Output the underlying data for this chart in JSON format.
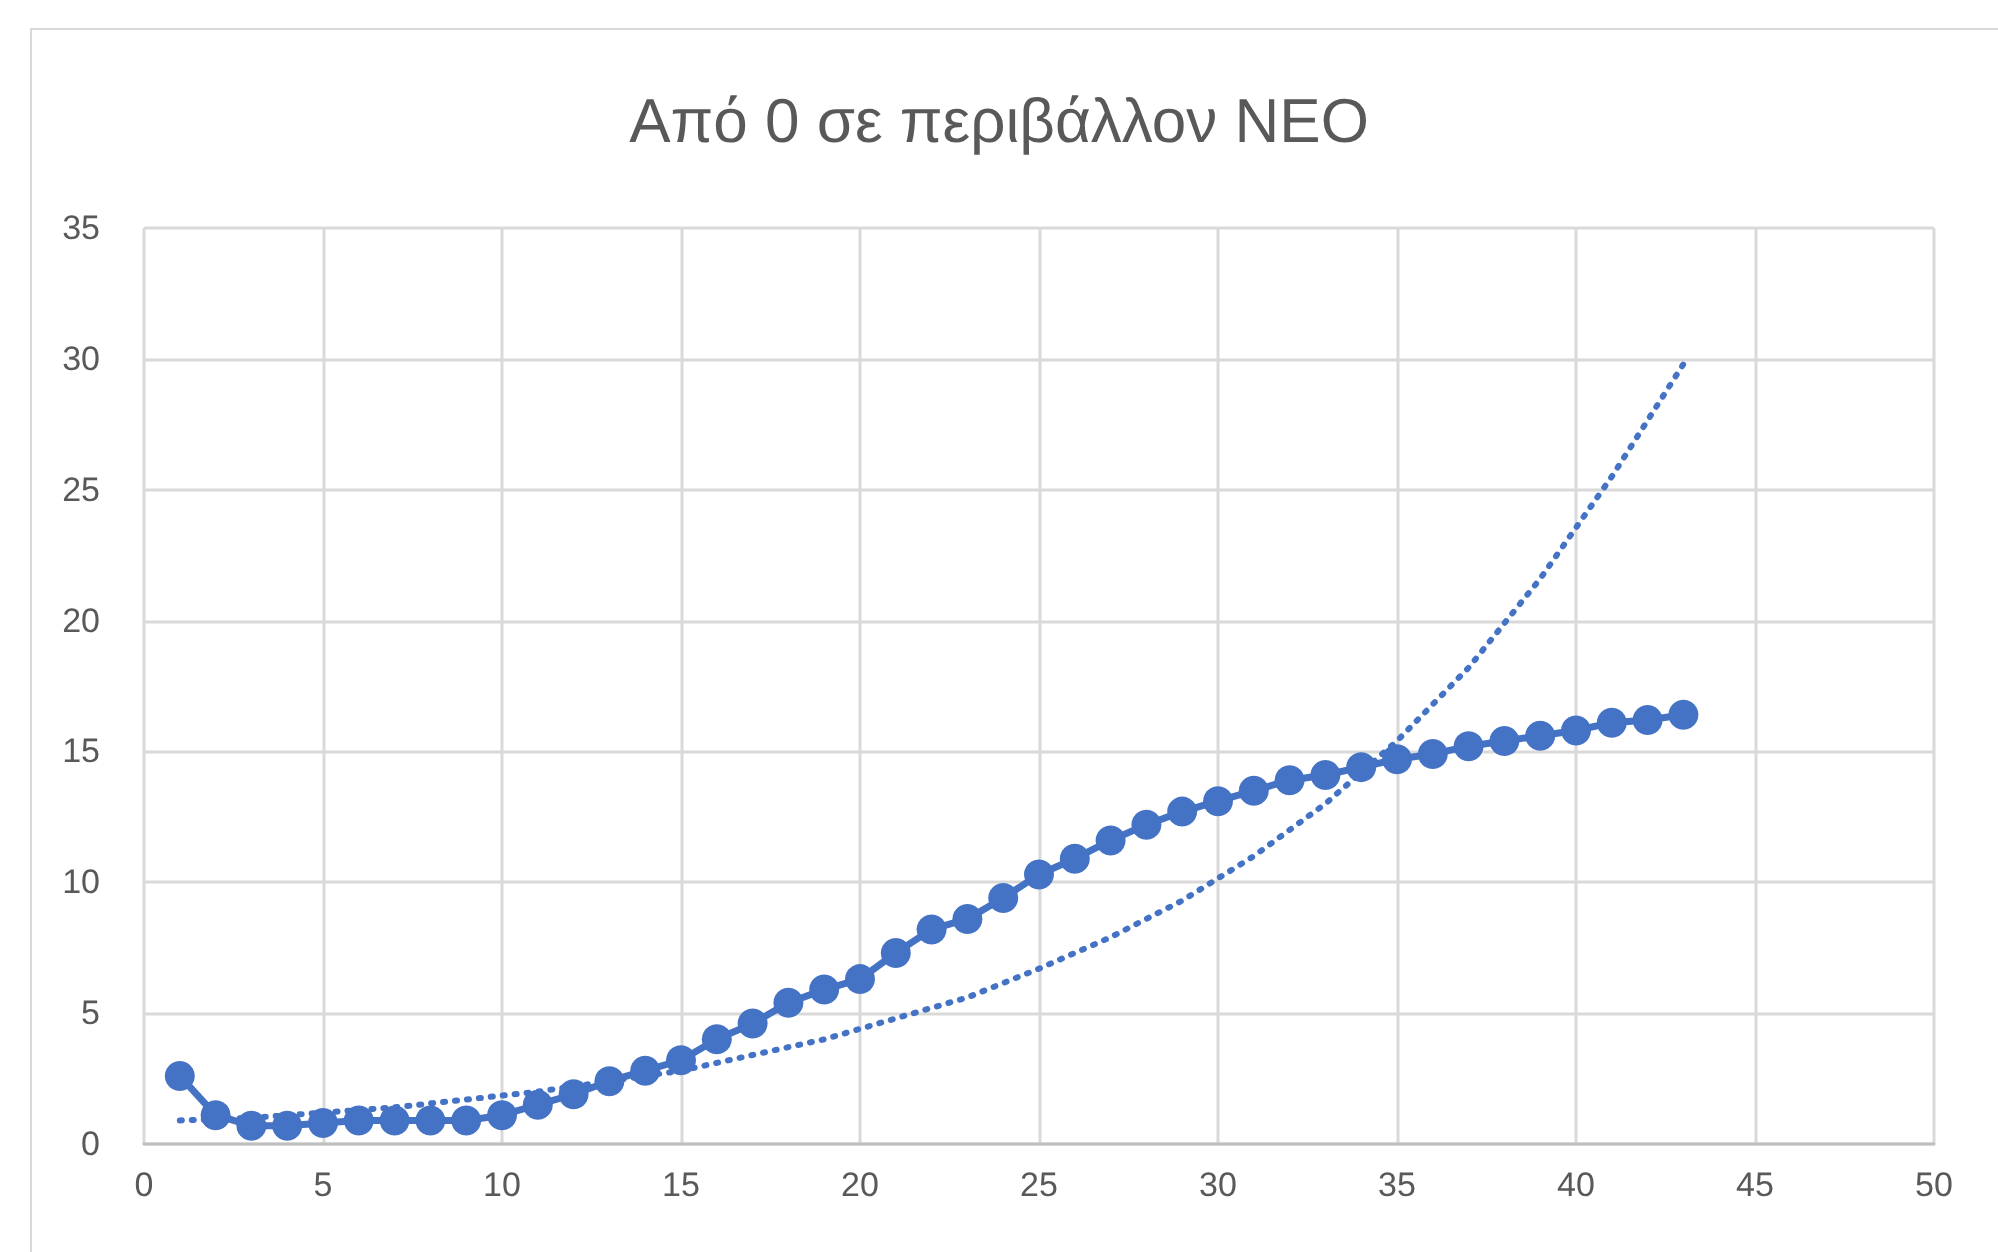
{
  "chart_data": {
    "type": "line",
    "title": "Από 0 σε περιβάλλον NEO",
    "xlim": [
      0,
      50
    ],
    "xticks": [
      0,
      5,
      10,
      15,
      20,
      25,
      30,
      35,
      40,
      45,
      50
    ],
    "ylim": [
      0,
      35
    ],
    "yticks": [
      0,
      5,
      10,
      15,
      20,
      25,
      30,
      35
    ],
    "grid": true,
    "series": [
      {
        "color": "#4472c4",
        "marker": "circle",
        "line_style": "solid",
        "x": [
          1,
          2,
          3,
          4,
          5,
          6,
          7,
          8,
          9,
          10,
          11,
          12,
          13,
          14,
          15,
          16,
          17,
          18,
          19,
          20,
          21,
          22,
          23,
          24,
          25,
          26,
          27,
          28,
          29,
          30,
          31,
          32,
          33,
          34,
          35,
          36,
          37,
          38,
          39,
          40,
          41,
          42,
          43
        ],
        "values": [
          2.6,
          1.1,
          0.7,
          0.7,
          0.8,
          0.9,
          0.9,
          0.9,
          0.9,
          1.1,
          1.5,
          1.9,
          2.4,
          2.8,
          3.2,
          4.0,
          4.6,
          5.4,
          5.9,
          6.3,
          7.3,
          8.2,
          8.6,
          9.4,
          10.3,
          10.9,
          11.6,
          12.2,
          12.7,
          13.1,
          13.5,
          13.9,
          14.1,
          14.4,
          14.7,
          14.9,
          15.2,
          15.4,
          15.6,
          15.8,
          16.1,
          16.2,
          16.4
        ]
      },
      {
        "color": "#4472c4",
        "marker": "none",
        "line_style": "dotted",
        "x": [
          1,
          3,
          5,
          7,
          9,
          11,
          13,
          15,
          17,
          19,
          21,
          23,
          25,
          27,
          29,
          31,
          33,
          35,
          37,
          39,
          41,
          43
        ],
        "values": [
          0.9,
          1.0,
          1.2,
          1.4,
          1.7,
          2.0,
          2.4,
          2.8,
          3.4,
          4.0,
          4.8,
          5.6,
          6.7,
          7.9,
          9.3,
          11.0,
          13.0,
          15.4,
          18.2,
          21.6,
          25.5,
          29.8
        ]
      }
    ]
  }
}
